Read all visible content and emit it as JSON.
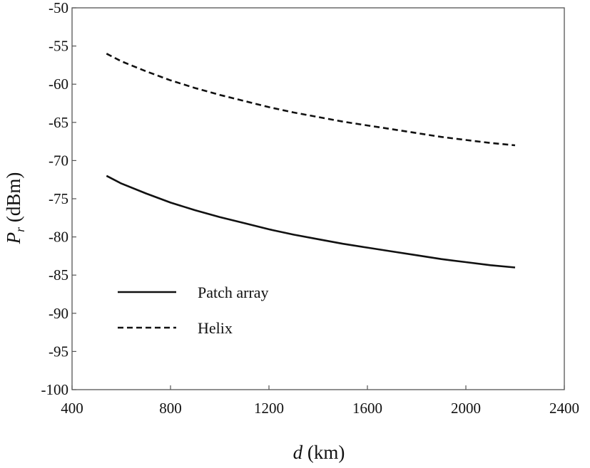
{
  "chart_data": {
    "type": "line",
    "title": "",
    "xlabel_symbol": "d",
    "xlabel_unit": " (km)",
    "ylabel_symbol": "P",
    "ylabel_subscript": "r",
    "ylabel_unit": " (dBm)",
    "xlim": [
      400,
      2400
    ],
    "ylim": [
      -100,
      -50
    ],
    "xticks": [
      400,
      800,
      1200,
      1600,
      2000,
      2400
    ],
    "yticks": [
      -50,
      -55,
      -60,
      -65,
      -70,
      -75,
      -80,
      -85,
      -90,
      -95,
      -100
    ],
    "grid": false,
    "legend_position": "lower-left",
    "series": [
      {
        "name": "Patch array",
        "style": "solid",
        "color": "#111111",
        "x": [
          540,
          600,
          700,
          800,
          900,
          1000,
          1100,
          1200,
          1300,
          1400,
          1500,
          1600,
          1700,
          1800,
          1900,
          2000,
          2100,
          2200
        ],
        "y": [
          -72.0,
          -73.0,
          -74.3,
          -75.5,
          -76.5,
          -77.4,
          -78.2,
          -79.0,
          -79.7,
          -80.3,
          -80.9,
          -81.4,
          -81.9,
          -82.4,
          -82.9,
          -83.3,
          -83.7,
          -84.0
        ]
      },
      {
        "name": "Helix",
        "style": "dashed",
        "color": "#111111",
        "x": [
          540,
          600,
          700,
          800,
          900,
          1000,
          1100,
          1200,
          1300,
          1400,
          1500,
          1600,
          1700,
          1800,
          1900,
          2000,
          2100,
          2200
        ],
        "y": [
          -56.0,
          -57.0,
          -58.3,
          -59.5,
          -60.5,
          -61.4,
          -62.2,
          -63.0,
          -63.7,
          -64.3,
          -64.9,
          -65.4,
          -65.9,
          -66.4,
          -66.9,
          -67.3,
          -67.7,
          -68.0
        ]
      }
    ]
  }
}
